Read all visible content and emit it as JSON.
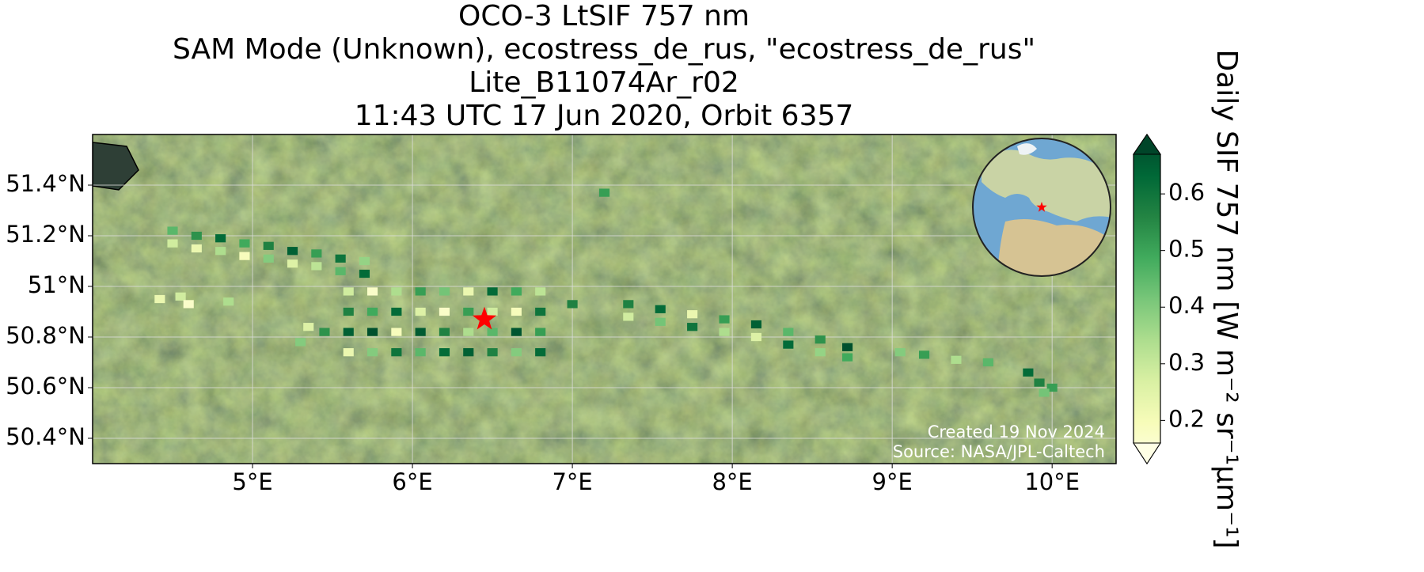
{
  "chart_data": {
    "type": "map",
    "title": [
      "OCO-3 LtSIF 757 nm",
      "SAM Mode (Unknown), ecostress_de_rus, \"ecostress_de_rus\"",
      "Lite_B11074Ar_r02",
      "11:43 UTC 17 Jun 2020, Orbit 6357"
    ],
    "colorbar_label": "Daily SIF 757 nm [W m⁻² sr⁻¹μm⁻¹]",
    "colormap": "YlGn",
    "clim": [
      0.16,
      0.67
    ],
    "cticks": [
      0.2,
      0.3,
      0.4,
      0.5,
      0.6
    ],
    "xlim": [
      4.0,
      10.4
    ],
    "ylim": [
      50.3,
      51.6
    ],
    "xticks": [
      {
        "value": 5,
        "label": "5°E"
      },
      {
        "value": 6,
        "label": "6°E"
      },
      {
        "value": 7,
        "label": "7°E"
      },
      {
        "value": 8,
        "label": "8°E"
      },
      {
        "value": 9,
        "label": "9°E"
      },
      {
        "value": 10,
        "label": "10°E"
      }
    ],
    "yticks": [
      {
        "value": 50.4,
        "label": "50.4°N"
      },
      {
        "value": 50.6,
        "label": "50.6°N"
      },
      {
        "value": 50.8,
        "label": "50.8°N"
      },
      {
        "value": 51,
        "label": "51°N"
      },
      {
        "value": 51.2,
        "label": "51.2°N"
      },
      {
        "value": 51.4,
        "label": "51.4°N"
      }
    ],
    "grid": true,
    "target": [
      6.45,
      50.87
    ],
    "target_color": "#ff0000",
    "x": [
      4.5,
      4.5,
      4.65,
      4.65,
      4.8,
      4.8,
      4.95,
      4.95,
      5.1,
      5.1,
      5.25,
      5.25,
      5.4,
      5.4,
      5.55,
      5.55,
      5.7,
      5.7,
      5.6,
      5.6,
      5.6,
      5.6,
      5.75,
      5.75,
      5.75,
      5.75,
      5.9,
      5.9,
      5.9,
      5.9,
      6.05,
      6.05,
      6.05,
      6.05,
      6.2,
      6.2,
      6.2,
      6.2,
      6.35,
      6.35,
      6.35,
      6.35,
      6.5,
      6.5,
      6.5,
      6.5,
      6.65,
      6.65,
      6.65,
      6.65,
      6.8,
      6.8,
      6.8,
      6.8,
      4.42,
      4.55,
      4.6,
      4.85,
      5.3,
      5.35,
      5.45,
      7.35,
      7.35,
      7.55,
      7.55,
      7.75,
      7.75,
      7.95,
      7.95,
      8.15,
      8.15,
      8.35,
      8.35,
      8.55,
      8.55,
      8.72,
      8.72,
      9.05,
      9.2,
      9.4,
      9.6,
      9.85,
      9.92,
      10.0,
      9.95,
      7.2,
      7.0
    ],
    "y": [
      51.22,
      51.17,
      51.2,
      51.15,
      51.19,
      51.14,
      51.17,
      51.12,
      51.16,
      51.11,
      51.14,
      51.09,
      51.13,
      51.08,
      51.11,
      51.06,
      51.1,
      51.05,
      50.98,
      50.9,
      50.82,
      50.74,
      50.98,
      50.9,
      50.82,
      50.74,
      50.98,
      50.9,
      50.82,
      50.74,
      50.98,
      50.9,
      50.82,
      50.74,
      50.98,
      50.9,
      50.82,
      50.74,
      50.98,
      50.9,
      50.82,
      50.74,
      50.98,
      50.9,
      50.82,
      50.74,
      50.98,
      50.9,
      50.82,
      50.74,
      50.98,
      50.9,
      50.82,
      50.74,
      50.95,
      50.96,
      50.93,
      50.94,
      50.78,
      50.84,
      50.82,
      50.93,
      50.88,
      50.91,
      50.86,
      50.89,
      50.84,
      50.87,
      50.82,
      50.85,
      50.8,
      50.82,
      50.77,
      50.79,
      50.74,
      50.76,
      50.72,
      50.74,
      50.73,
      50.71,
      50.7,
      50.66,
      50.62,
      50.6,
      50.58,
      51.37,
      50.93
    ],
    "values": [
      0.45,
      0.3,
      0.52,
      0.25,
      0.6,
      0.35,
      0.48,
      0.22,
      0.55,
      0.4,
      0.62,
      0.28,
      0.5,
      0.33,
      0.58,
      0.45,
      0.38,
      0.6,
      0.3,
      0.55,
      0.62,
      0.25,
      0.2,
      0.48,
      0.65,
      0.4,
      0.35,
      0.6,
      0.22,
      0.58,
      0.5,
      0.28,
      0.63,
      0.45,
      0.42,
      0.2,
      0.55,
      0.6,
      0.25,
      0.5,
      0.35,
      0.62,
      0.6,
      0.3,
      0.45,
      0.55,
      0.48,
      0.22,
      0.64,
      0.4,
      0.33,
      0.58,
      0.5,
      0.6,
      0.25,
      0.3,
      0.2,
      0.35,
      0.4,
      0.28,
      0.52,
      0.55,
      0.3,
      0.6,
      0.42,
      0.25,
      0.58,
      0.5,
      0.35,
      0.62,
      0.28,
      0.45,
      0.6,
      0.52,
      0.38,
      0.65,
      0.48,
      0.4,
      0.5,
      0.35,
      0.45,
      0.6,
      0.55,
      0.5,
      0.42,
      0.5,
      0.55
    ],
    "footnotes": [
      "Created 19 Nov 2024",
      "Source: NASA/JPL-Caltech"
    ]
  }
}
